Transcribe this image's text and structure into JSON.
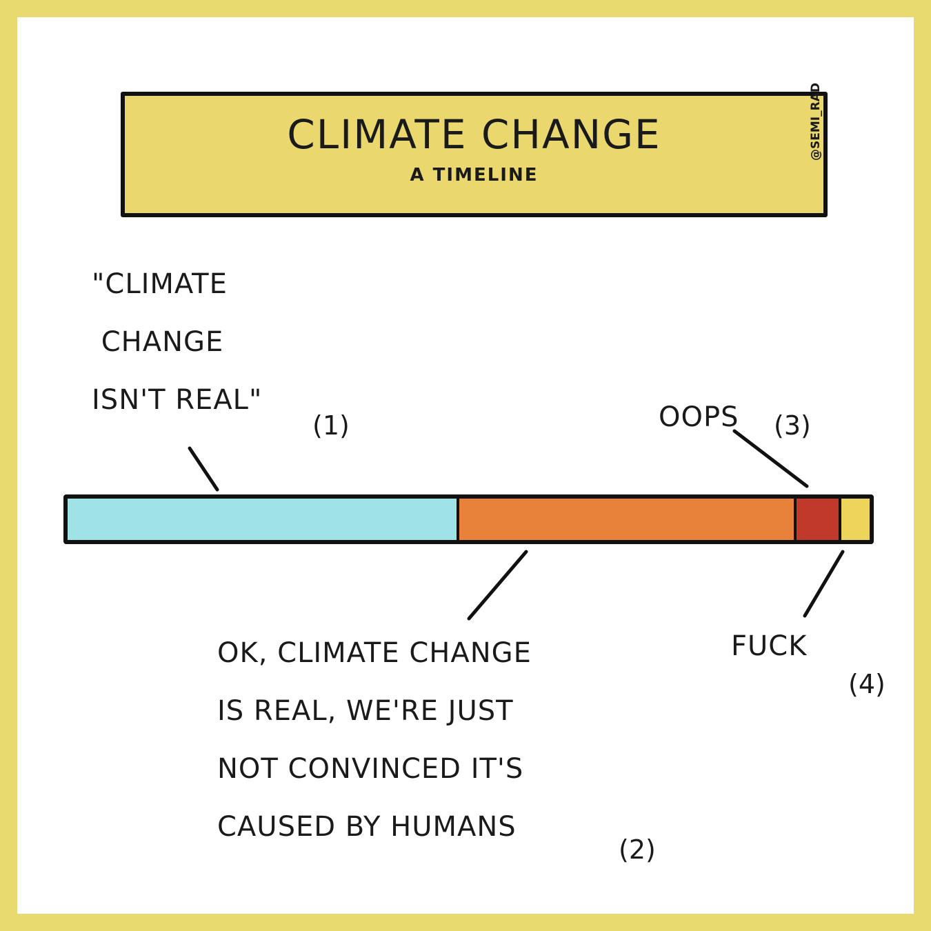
{
  "title": "CLIMATE CHANGE",
  "subtitle": "A TIMELINE",
  "credit": "@SEMI_RAD",
  "stages": [
    {
      "text": "\"CLIMATE\n CHANGE\nISN'T REAL\"",
      "number": "(1)",
      "color": "#9fe3e6",
      "share": 0.485
    },
    {
      "text": "OK, CLIMATE CHANGE\nIS REAL, WE'RE JUST\nNOT CONVINCED IT'S\nCAUSED BY HUMANS",
      "number": "(2)",
      "color": "#e8823a",
      "share": 0.42
    },
    {
      "text": "OOPS",
      "number": "(3)",
      "color": "#c0392b",
      "share": 0.056
    },
    {
      "text": "FUCK",
      "number": "(4)",
      "color": "#ecd55a",
      "share": 0.039
    }
  ]
}
